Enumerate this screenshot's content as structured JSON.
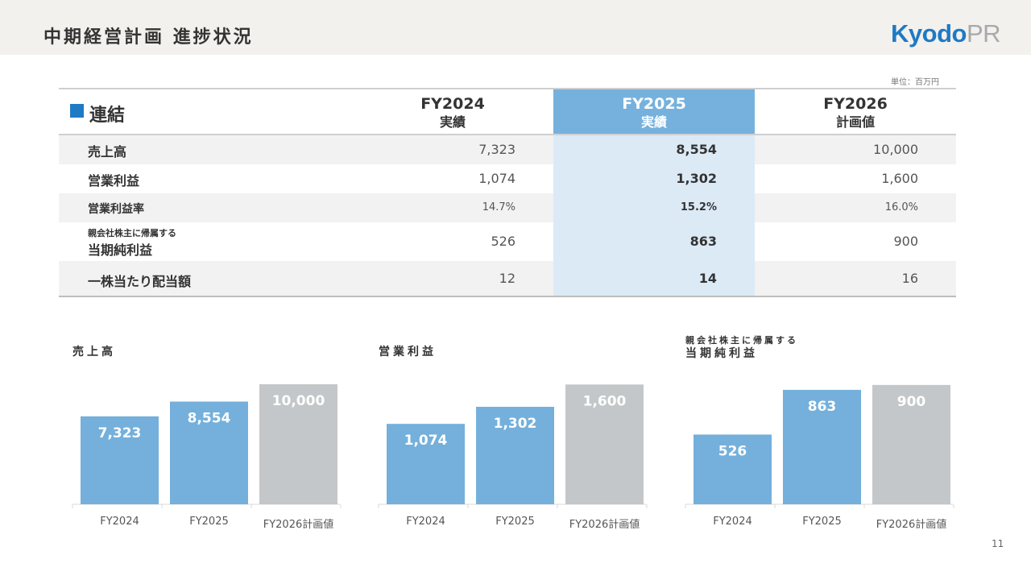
{
  "header": {
    "title": "中期経営計画 進捗状況",
    "logo_primary": "Kyodo",
    "logo_secondary": "PR"
  },
  "table": {
    "unit": "単位：百万円",
    "scope_label": "連結",
    "columns": [
      {
        "fy": "FY2024",
        "sub": "実績"
      },
      {
        "fy": "FY2025",
        "sub": "実績"
      },
      {
        "fy": "FY2026",
        "sub": "計画値"
      }
    ],
    "rows": [
      {
        "label": "売上高",
        "label_small": "",
        "values": [
          "7,323",
          "8,554",
          "10,000"
        ]
      },
      {
        "label": "営業利益",
        "label_small": "",
        "values": [
          "1,074",
          "1,302",
          "1,600"
        ]
      },
      {
        "label": "営業利益率",
        "label_small": "",
        "values": [
          "14.7%",
          "15.2%",
          "16.0%"
        ]
      },
      {
        "label": "当期純利益",
        "label_small": "親会社株主に帰属する",
        "values": [
          "526",
          "863",
          "900"
        ]
      },
      {
        "label": "一株当たり配当額",
        "label_small": "",
        "values": [
          "12",
          "14",
          "16"
        ]
      }
    ]
  },
  "colors": {
    "actual_bar": "#74b0db",
    "plan_bar": "#c4c7c9",
    "accent_blue": "#1f7ac4",
    "fy2025_header": "#76b1dd",
    "fy2025_body": "#dceaf6"
  },
  "chart_data": [
    {
      "type": "bar",
      "title": "売上高",
      "subtitle": "",
      "categories": [
        "FY2024",
        "FY2025",
        "FY2026計画値"
      ],
      "values": [
        7323,
        8554,
        10000
      ],
      "value_labels": [
        "7,323",
        "8,554",
        "10,000"
      ],
      "bar_kinds": [
        "actual",
        "actual",
        "plan"
      ],
      "ylim": [
        0,
        10600
      ],
      "grid": false,
      "legend": "none"
    },
    {
      "type": "bar",
      "title": "営業利益",
      "subtitle": "",
      "categories": [
        "FY2024",
        "FY2025",
        "FY2026計画値"
      ],
      "values": [
        1074,
        1302,
        1600
      ],
      "value_labels": [
        "1,074",
        "1,302",
        "1,600"
      ],
      "bar_kinds": [
        "actual",
        "actual",
        "plan"
      ],
      "ylim": [
        0,
        1700
      ],
      "grid": false,
      "legend": "none"
    },
    {
      "type": "bar",
      "title": "当期純利益",
      "subtitle": "親会社株主に帰属する",
      "categories": [
        "FY2024",
        "FY2025",
        "FY2026計画値"
      ],
      "values": [
        526,
        863,
        900
      ],
      "value_labels": [
        "526",
        "863",
        "900"
      ],
      "bar_kinds": [
        "actual",
        "actual",
        "plan"
      ],
      "ylim": [
        0,
        960
      ],
      "grid": false,
      "legend": "none"
    }
  ],
  "footer": {
    "page_number": "11"
  }
}
